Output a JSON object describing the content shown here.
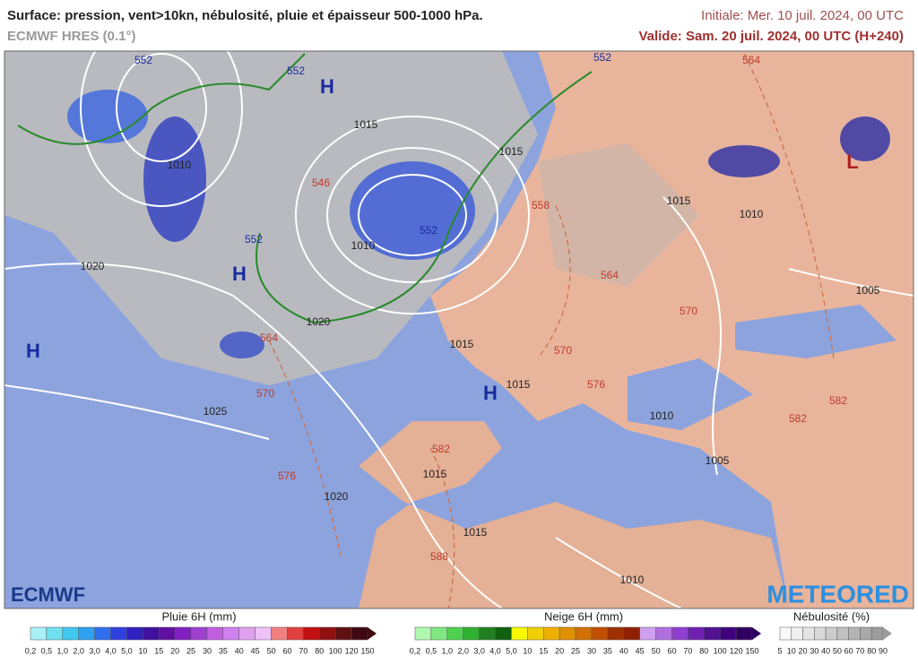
{
  "header": {
    "title": "Surface: pression, vent>10kn, nébulosité, pluie et épaisseur 500-1000 hPa.",
    "model": "ECMWF HRES (0.1°)",
    "initial": "Initiale: Mer. 10 juil. 2024, 00 UTC",
    "valid": "Valide: Sam. 20 juil. 2024, 00 UTC (H+240)"
  },
  "map": {
    "pressure_centers": [
      "H",
      "H",
      "H",
      "H",
      "L"
    ],
    "isobar_labels": [
      "1015",
      "1015",
      "1010",
      "1010",
      "1020",
      "1020",
      "1015",
      "1015",
      "1025",
      "1020",
      "1015",
      "1015",
      "1010",
      "1010",
      "1005",
      "1015",
      "1010",
      "1005"
    ],
    "thickness_labels": [
      "552",
      "552",
      "552",
      "546",
      "552",
      "552",
      "558",
      "564",
      "564",
      "564",
      "570",
      "576",
      "582",
      "588",
      "570",
      "576",
      "570",
      "582",
      "582"
    ]
  },
  "logos": {
    "left": "ECMWF",
    "right": "METEORED"
  },
  "legend": {
    "rain": {
      "title": "Pluie 6H (mm)",
      "ticks": [
        "0,2",
        "0,5",
        "1,0",
        "2,0",
        "3,0",
        "4,0",
        "5,0",
        "10",
        "15",
        "20",
        "25",
        "30",
        "35",
        "40",
        "45",
        "50",
        "60",
        "70",
        "80",
        "100",
        "120",
        "150"
      ]
    },
    "snow": {
      "title": "Neige 6H (mm)",
      "ticks": [
        "0,2",
        "0,5",
        "1,0",
        "2,0",
        "3,0",
        "4,0",
        "5,0",
        "10",
        "15",
        "20",
        "25",
        "30",
        "35",
        "40",
        "45",
        "50",
        "60",
        "70",
        "80",
        "100",
        "120",
        "150"
      ]
    },
    "cloud": {
      "title": "Nébulosité (%)",
      "ticks": [
        "5",
        "10",
        "20",
        "30",
        "40",
        "50",
        "60",
        "70",
        "80",
        "90"
      ]
    }
  }
}
